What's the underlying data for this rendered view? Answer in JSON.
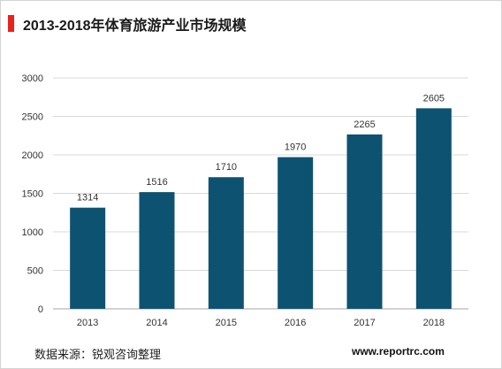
{
  "header": {
    "title": "2013-2018年体育旅游产业市场规模"
  },
  "colors": {
    "accent": "#e8231b",
    "bar": "#0e5272",
    "grid": "#d9d9d9",
    "axis": "#a6a6a6",
    "text": "#333333"
  },
  "chart_data": {
    "type": "bar",
    "title": "",
    "xlabel": "",
    "ylabel": "",
    "categories": [
      "2013",
      "2014",
      "2015",
      "2016",
      "2017",
      "2018"
    ],
    "values": [
      1314,
      1516,
      1710,
      1970,
      2265,
      2605
    ],
    "ylim": [
      0,
      3000
    ],
    "yticks": [
      "0",
      "500",
      "1000",
      "1500",
      "2000",
      "2500",
      "3000"
    ],
    "grid": true,
    "legend": "none"
  },
  "footer": {
    "source": "数据来源：锐观咨询整理",
    "website": "www.reportrc.com"
  }
}
